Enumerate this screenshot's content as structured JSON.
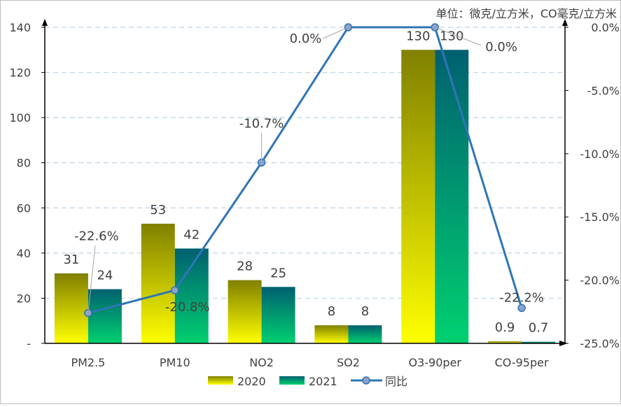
{
  "chart_data": {
    "type": "bar+line",
    "unit_note": "单位：微克/立方米，CO毫克/立方米",
    "categories": [
      "PM2.5",
      "PM10",
      "NO2",
      "SO2",
      "O3-90per",
      "CO-95per"
    ],
    "series": [
      {
        "name": "2020",
        "type": "bar",
        "axis": "left",
        "values": [
          31,
          53,
          28,
          8,
          130,
          0.9
        ],
        "labels": [
          "31",
          "53",
          "28",
          "8",
          "130",
          "0.9"
        ]
      },
      {
        "name": "2021",
        "type": "bar",
        "axis": "left",
        "values": [
          24,
          42,
          25,
          8,
          130,
          0.7
        ],
        "labels": [
          "24",
          "42",
          "25",
          "8",
          "130",
          "0.7"
        ]
      },
      {
        "name": "同比",
        "type": "line",
        "axis": "right",
        "values": [
          -22.6,
          -20.8,
          -10.7,
          0.0,
          0.0,
          -22.2
        ],
        "labels": [
          "-22.6%",
          "-20.8%",
          "-10.7%",
          "0.0%",
          "0.0%",
          "-22.2%"
        ]
      }
    ],
    "left_axis": {
      "ylim": [
        0,
        140
      ],
      "ticks": [
        0,
        20,
        40,
        60,
        80,
        100,
        120,
        140
      ],
      "tick_labels": [
        "-",
        "20",
        "40",
        "60",
        "80",
        "100",
        "120",
        "140"
      ]
    },
    "right_axis": {
      "ylim": [
        -25,
        0
      ],
      "ticks": [
        0,
        -5,
        -10,
        -15,
        -20,
        -25
      ],
      "tick_labels": [
        "0.0%",
        "-5.0%",
        "-10.0%",
        "-15.0%",
        "-20.0%",
        "-25.0%"
      ]
    },
    "grid": true,
    "legend_position": "bottom",
    "legend": [
      "2020",
      "2021",
      "同比"
    ],
    "colors": {
      "bar2020_top": "#808000",
      "bar2020_bottom": "#ffff00",
      "bar2021_top": "#006070",
      "bar2021_bottom": "#00d070",
      "line": "#2e75b6",
      "marker_fill": "#8ea3c8",
      "grid": "#bcd3e3",
      "axis": "#000000",
      "text": "#404040"
    }
  }
}
